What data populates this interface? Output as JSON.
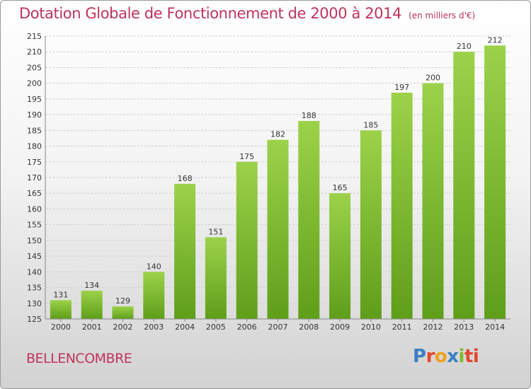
{
  "header": {
    "title": "Dotation Globale de Fonctionnement de 2000 à 2014",
    "unit": "(en milliers d'€)"
  },
  "footer": {
    "commune": "BELLENCOMBRE",
    "logo": [
      "P",
      "r",
      "o",
      "x",
      "i",
      "ti"
    ]
  },
  "colors": {
    "bar_top": "#9cd24a",
    "bar_bottom": "#5f9e1a",
    "title": "#c0335a"
  },
  "chart_data": {
    "type": "bar",
    "title": "Dotation Globale de Fonctionnement de 2000 à 2014",
    "subtitle": "(en milliers d'€)",
    "xlabel": "",
    "ylabel": "",
    "categories": [
      "2000",
      "2001",
      "2002",
      "2003",
      "2004",
      "2005",
      "2006",
      "2007",
      "2008",
      "2009",
      "2010",
      "2011",
      "2012",
      "2013",
      "2014"
    ],
    "values": [
      131,
      134,
      129,
      140,
      168,
      151,
      175,
      182,
      188,
      165,
      185,
      197,
      200,
      210,
      212
    ],
    "ylim": [
      125,
      215
    ],
    "yticks": [
      125,
      130,
      135,
      140,
      145,
      150,
      155,
      160,
      165,
      170,
      175,
      180,
      185,
      190,
      195,
      200,
      205,
      210,
      215
    ],
    "grid": true,
    "legend": "none"
  }
}
